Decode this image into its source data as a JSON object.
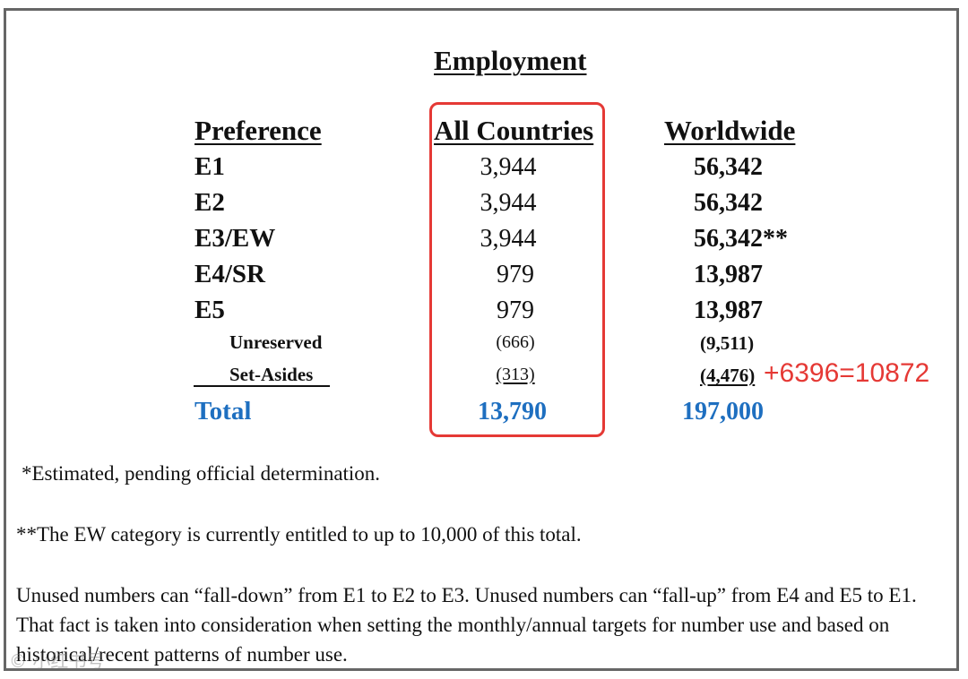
{
  "document": {
    "title": "Employment",
    "headers": {
      "preference": "Preference",
      "all_countries": "All Countries",
      "worldwide": "Worldwide"
    },
    "rows": [
      {
        "label": "E1",
        "all": "3,944",
        "worldwide": "56,342"
      },
      {
        "label": "E2",
        "all": "3,944",
        "worldwide": "56,342"
      },
      {
        "label": "E3/EW",
        "all": "3,944",
        "worldwide": "56,342**"
      },
      {
        "label": "E4/SR",
        "all": "979",
        "worldwide": "13,987"
      },
      {
        "label": "E5",
        "all": "979",
        "worldwide": "13,987"
      }
    ],
    "subrows": [
      {
        "label": "Unreserved",
        "all": "(666)",
        "worldwide": "(9,511)"
      },
      {
        "label": "Set-Asides",
        "all": "(313)",
        "worldwide": "(4,476)"
      }
    ],
    "total": {
      "label": "Total",
      "all": "13,790",
      "worldwide": "197,000"
    },
    "notes": {
      "estimated": "*Estimated, pending official determination.",
      "ew": "**The EW category is currently entitled to up to 10,000 of this total.",
      "paragraph": "Unused numbers can “fall-down” from E1 to E2 to E3.  Unused numbers can “fall-up” from E4 and E5 to E1.  That fact is taken into consideration when setting the monthly/annual targets for number use and based on historical/recent patterns of number use."
    }
  },
  "annotation": {
    "handwritten_sum": "+6396=10872",
    "color": "#e53935"
  },
  "watermark": "©  小红书号",
  "colors": {
    "total_blue": "#1e6fc0",
    "highlight_red": "#e53935"
  }
}
